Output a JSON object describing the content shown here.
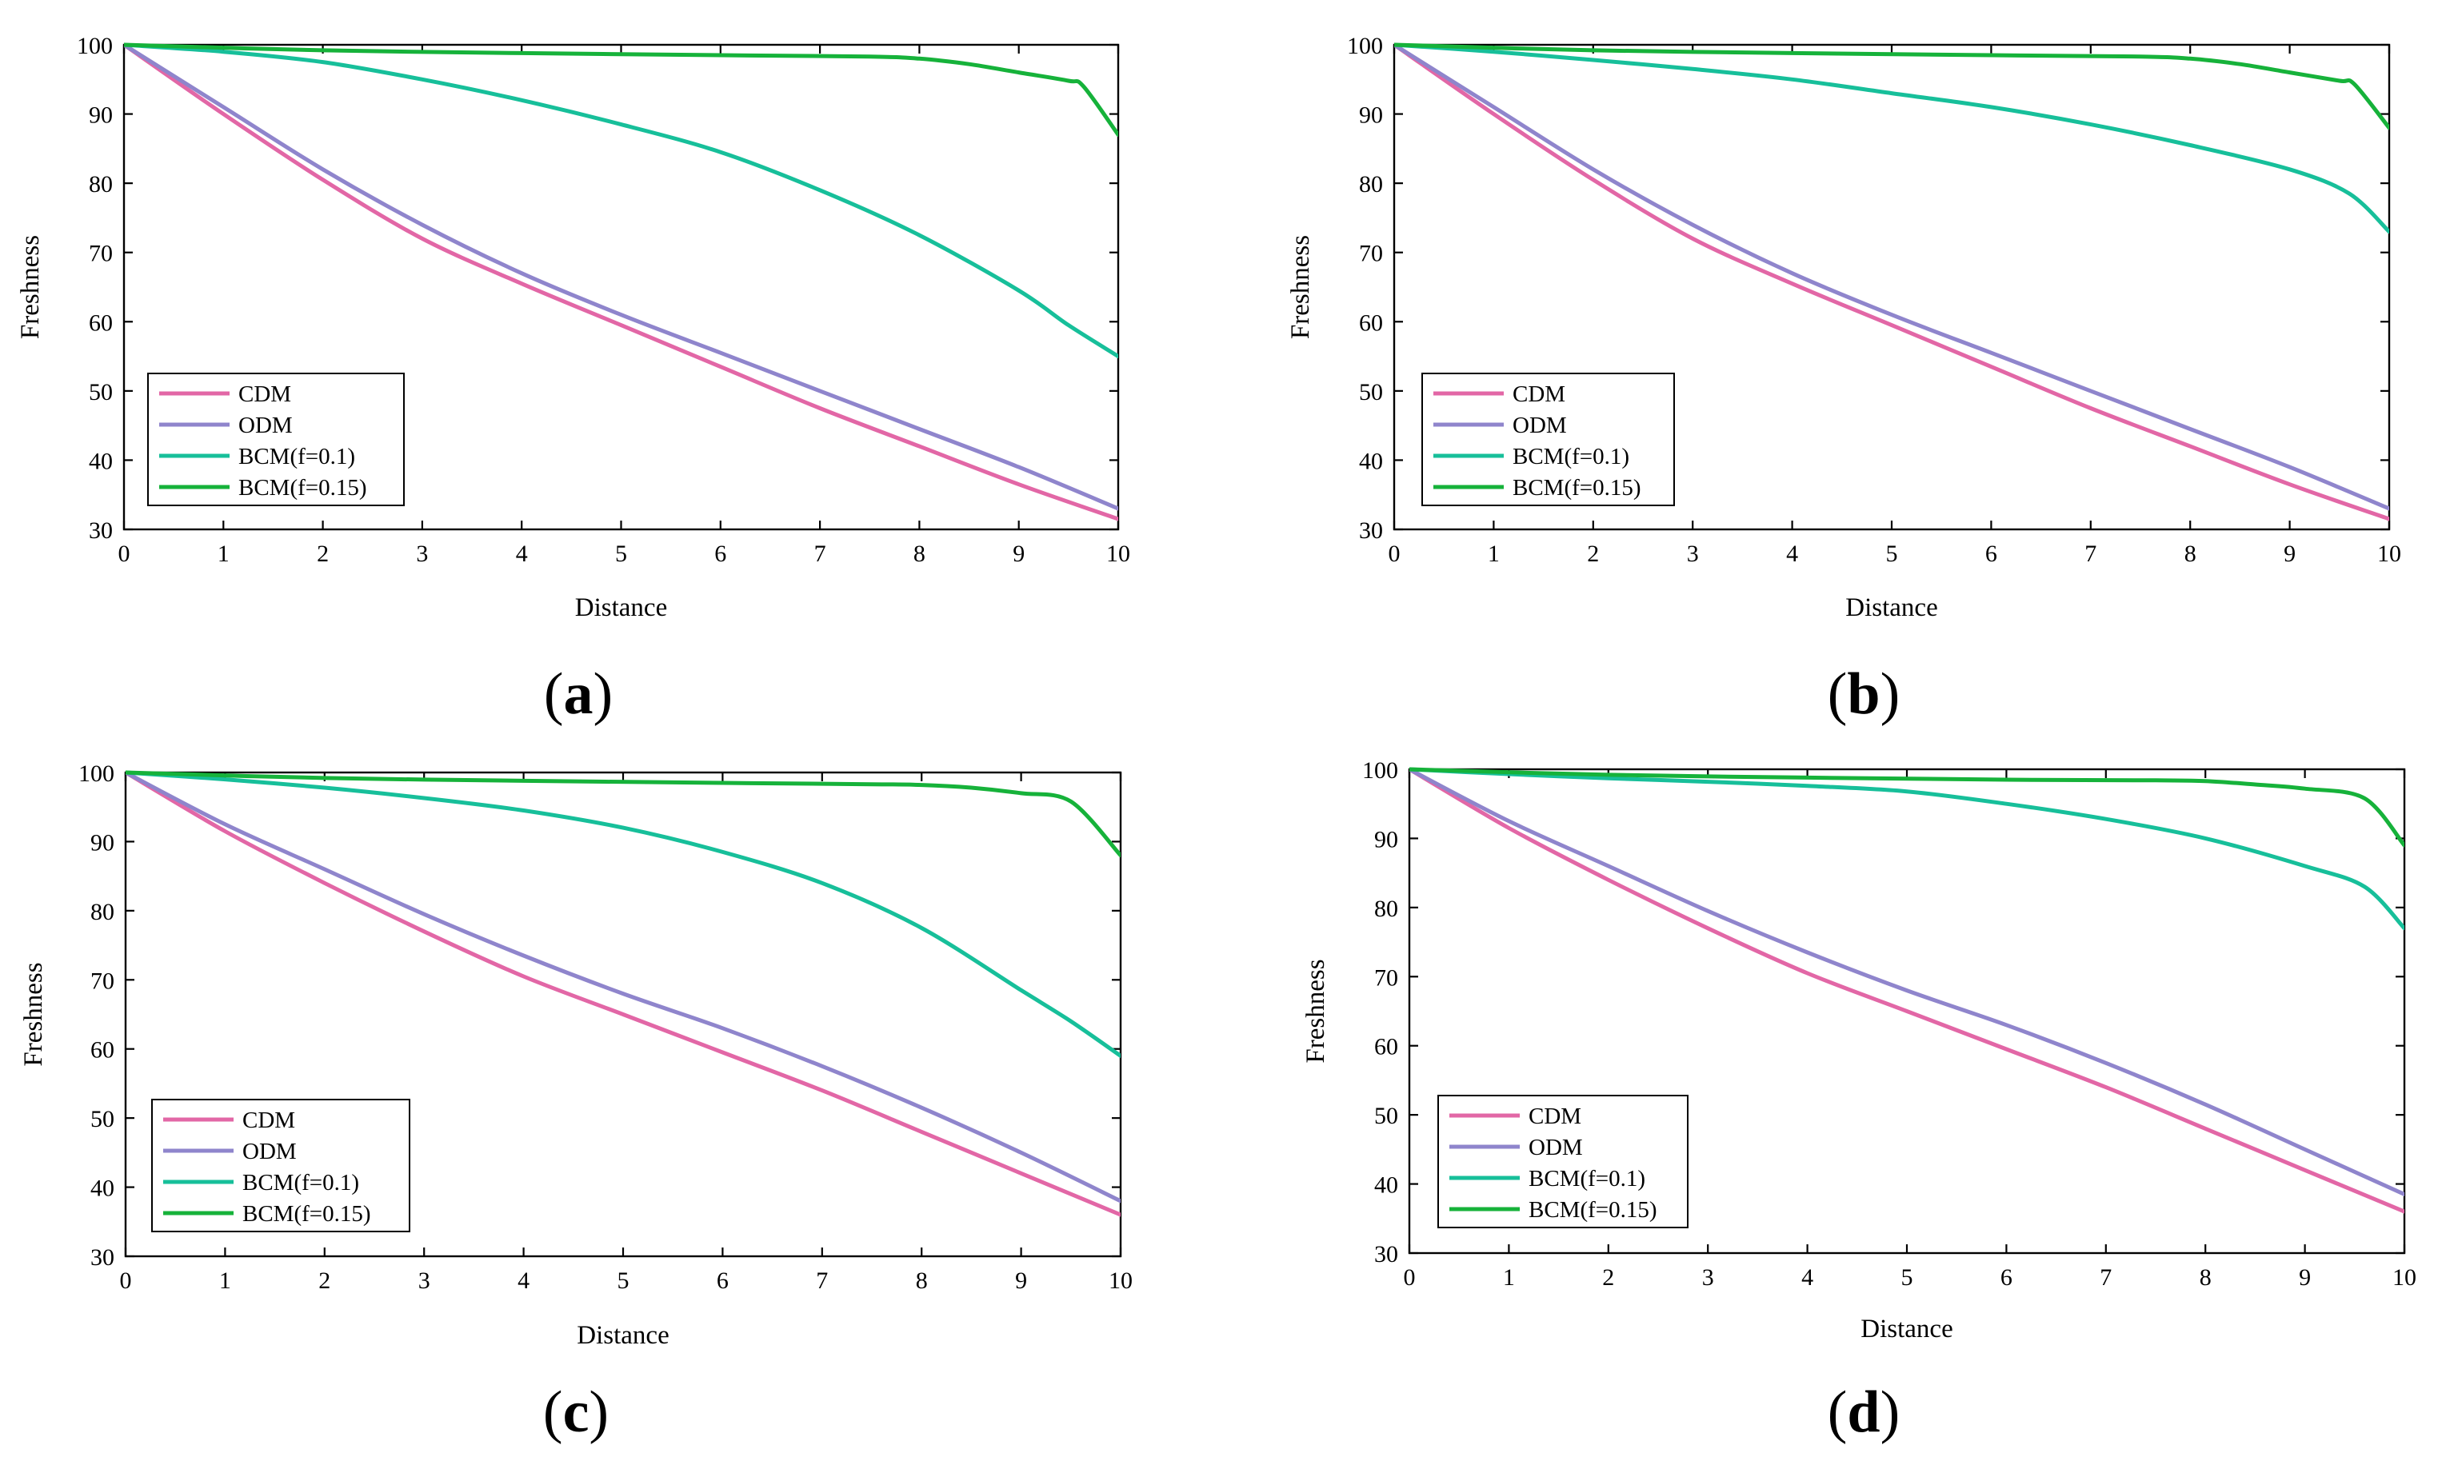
{
  "figure": {
    "series_colors": {
      "CDM": "#e267a6",
      "ODM": "#8f85cc",
      "BCM(f=0.1)": "#17bf9a",
      "BCM(f=0.15)": "#16b23a"
    }
  },
  "chart_data": [
    {
      "type": "line",
      "panel": "a",
      "panel_prefix": "(",
      "panel_letter": "a",
      "panel_suffix": ")",
      "xlabel": "Distance",
      "ylabel": "Freshness",
      "xlim": [
        0,
        10
      ],
      "ylim": [
        30,
        100
      ],
      "xticks": [
        "0",
        "1",
        "2",
        "3",
        "4",
        "5",
        "6",
        "7",
        "8",
        "9",
        "10"
      ],
      "yticks": [
        "30",
        "40",
        "50",
        "60",
        "70",
        "80",
        "90",
        "100"
      ],
      "legend_position": "lower-left",
      "series": [
        {
          "name": "CDM",
          "x": [
            0,
            1,
            2,
            3,
            4,
            5,
            6,
            7,
            8,
            9,
            10
          ],
          "values": [
            100,
            90,
            80.5,
            72,
            65.5,
            59.5,
            53.5,
            47.5,
            42,
            36.5,
            31.5
          ]
        },
        {
          "name": "ODM",
          "x": [
            0,
            1,
            2,
            3,
            4,
            5,
            6,
            7,
            8,
            9,
            10
          ],
          "values": [
            100,
            91,
            82,
            74,
            67,
            61,
            55.5,
            50,
            44.5,
            39,
            33
          ]
        },
        {
          "name": "BCM(f=0.1)",
          "x": [
            0,
            1,
            2,
            3,
            4,
            5,
            6,
            7,
            8,
            9,
            9.5,
            10
          ],
          "values": [
            100,
            99,
            97.5,
            95,
            92,
            88.5,
            84.5,
            79,
            72.5,
            64.5,
            59.5,
            55
          ]
        },
        {
          "name": "BCM(f=0.15)",
          "x": [
            0,
            2,
            4,
            6,
            7.5,
            8,
            8.5,
            9,
            9.5,
            9.65,
            10
          ],
          "values": [
            100,
            99.2,
            98.8,
            98.5,
            98.3,
            98,
            97.2,
            96,
            94.8,
            94,
            87
          ]
        }
      ]
    },
    {
      "type": "line",
      "panel": "b",
      "panel_prefix": "(",
      "panel_letter": "b",
      "panel_suffix": ")",
      "xlabel": "Distance",
      "ylabel": "Freshness",
      "xlim": [
        0,
        10
      ],
      "ylim": [
        30,
        100
      ],
      "xticks": [
        "0",
        "1",
        "2",
        "3",
        "4",
        "5",
        "6",
        "7",
        "8",
        "9",
        "10"
      ],
      "yticks": [
        "30",
        "40",
        "50",
        "60",
        "70",
        "80",
        "90",
        "100"
      ],
      "legend_position": "lower-left",
      "series": [
        {
          "name": "CDM",
          "x": [
            0,
            1,
            2,
            3,
            4,
            5,
            6,
            7,
            8,
            9,
            10
          ],
          "values": [
            100,
            90,
            80.5,
            72,
            65.5,
            59.5,
            53.5,
            47.5,
            42,
            36.5,
            31.5
          ]
        },
        {
          "name": "ODM",
          "x": [
            0,
            1,
            2,
            3,
            4,
            5,
            6,
            7,
            8,
            9,
            10
          ],
          "values": [
            100,
            91,
            82,
            74,
            67,
            61,
            55.5,
            50,
            44.5,
            39,
            33
          ]
        },
        {
          "name": "BCM(f=0.1)",
          "x": [
            0,
            1,
            2,
            3,
            4,
            5,
            6,
            7,
            8,
            9,
            9.6,
            10
          ],
          "values": [
            100,
            99,
            97.8,
            96.5,
            95,
            93,
            91,
            88.5,
            85.5,
            82,
            78.5,
            73
          ]
        },
        {
          "name": "BCM(f=0.15)",
          "x": [
            0,
            2,
            4,
            6,
            7.5,
            8,
            8.5,
            9,
            9.5,
            9.65,
            10
          ],
          "values": [
            100,
            99.2,
            98.8,
            98.5,
            98.3,
            98,
            97.2,
            96,
            94.8,
            94.3,
            88
          ]
        }
      ]
    },
    {
      "type": "line",
      "panel": "c",
      "panel_prefix": "(",
      "panel_letter": "c",
      "panel_suffix": ")",
      "xlabel": "Distance",
      "ylabel": "Freshness",
      "xlim": [
        0,
        10
      ],
      "ylim": [
        30,
        100
      ],
      "xticks": [
        "0",
        "1",
        "2",
        "3",
        "4",
        "5",
        "6",
        "7",
        "8",
        "9",
        "10"
      ],
      "yticks": [
        "30",
        "40",
        "50",
        "60",
        "70",
        "80",
        "90",
        "100"
      ],
      "legend_position": "lower-left",
      "series": [
        {
          "name": "CDM",
          "x": [
            0,
            1,
            2,
            3,
            4,
            5,
            6,
            7,
            8,
            9,
            10
          ],
          "values": [
            100,
            91.5,
            84,
            77,
            70.5,
            65,
            59.5,
            54,
            48,
            42,
            36
          ]
        },
        {
          "name": "ODM",
          "x": [
            0,
            1,
            2,
            3,
            4,
            5,
            6,
            7,
            8,
            9,
            10
          ],
          "values": [
            100,
            92.5,
            86,
            79.5,
            73.5,
            68,
            63,
            57.5,
            51.5,
            45,
            38
          ]
        },
        {
          "name": "BCM(f=0.1)",
          "x": [
            0,
            1,
            2,
            3,
            4,
            5,
            6,
            7,
            8,
            9,
            9.5,
            10
          ],
          "values": [
            100,
            99,
            97.8,
            96.3,
            94.5,
            92,
            88.5,
            84,
            77.5,
            68.5,
            64,
            59
          ]
        },
        {
          "name": "BCM(f=0.15)",
          "x": [
            0,
            2,
            4,
            6,
            7.5,
            8,
            8.5,
            9,
            9.5,
            10
          ],
          "values": [
            100,
            99.2,
            98.8,
            98.5,
            98.3,
            98.2,
            97.8,
            97,
            95.8,
            88
          ]
        }
      ]
    },
    {
      "type": "line",
      "panel": "d",
      "panel_prefix": "(",
      "panel_letter": "d",
      "panel_suffix": ")",
      "xlabel": "Distance",
      "ylabel": "Freshness",
      "xlim": [
        0,
        10
      ],
      "ylim": [
        30,
        100
      ],
      "xticks": [
        "0",
        "1",
        "2",
        "3",
        "4",
        "5",
        "6",
        "7",
        "8",
        "9",
        "10"
      ],
      "yticks": [
        "30",
        "40",
        "50",
        "60",
        "70",
        "80",
        "90",
        "100"
      ],
      "legend_position": "lower-left",
      "series": [
        {
          "name": "CDM",
          "x": [
            0,
            1,
            2,
            3,
            4,
            5,
            6,
            7,
            8,
            9,
            10
          ],
          "values": [
            100,
            91.5,
            84,
            77,
            70.5,
            65,
            59.5,
            54,
            48,
            42,
            36
          ]
        },
        {
          "name": "ODM",
          "x": [
            0,
            1,
            2,
            3,
            4,
            5,
            6,
            7,
            8,
            9,
            10
          ],
          "values": [
            100,
            92.5,
            86,
            79.5,
            73.5,
            68,
            63,
            57.5,
            51.5,
            45,
            38.5
          ]
        },
        {
          "name": "BCM(f=0.1)",
          "x": [
            0,
            1,
            2,
            3,
            4,
            5,
            6,
            7,
            8,
            9,
            9.6,
            10
          ],
          "values": [
            100,
            99.3,
            98.7,
            98.2,
            97.6,
            96.8,
            95,
            92.8,
            90,
            86,
            83,
            77
          ]
        },
        {
          "name": "BCM(f=0.15)",
          "x": [
            0,
            2,
            4,
            6,
            7.5,
            8,
            8.5,
            9,
            9.6,
            10
          ],
          "values": [
            100,
            99.2,
            98.8,
            98.5,
            98.4,
            98.3,
            97.8,
            97.2,
            95.8,
            89
          ]
        }
      ]
    }
  ]
}
